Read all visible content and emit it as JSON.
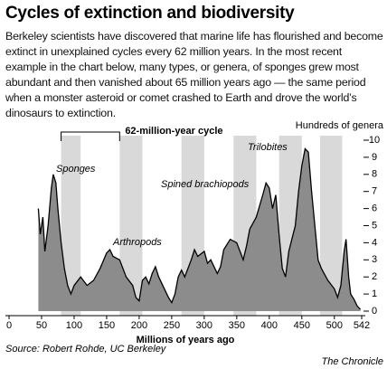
{
  "chart_data": {
    "type": "area",
    "title": "Cycles of extinction and biodiversity",
    "subtitle": "Berkeley scientists have discovered that marine life has flourished and become extinct in unexplained cycles every 62 million years. In the most recent example in the chart below, many types, or genera, of sponges grew most abundant and then vanished about 65 million years ago — the same period when a monster asteroid or comet crashed to Earth and drove the world’s dinosaurs to extinction.",
    "x_label": "Millions of years ago",
    "y_label": "Hundreds of genera",
    "cycle_label": "62-million-year cycle",
    "annotations": [
      "Sponges",
      "Arthropods",
      "Spined brachiopods",
      "Trilobites"
    ],
    "source": "Source: Robert Rohde, UC Berkeley",
    "credit": "The Chronicle",
    "color": "#8c8c8c",
    "band_color": "#d9d9d9",
    "cycle_bands": [
      [
        80,
        110
      ],
      [
        170,
        205
      ],
      [
        265,
        300
      ],
      [
        345,
        380
      ],
      [
        415,
        450
      ],
      [
        478,
        512
      ]
    ],
    "x": [
      45,
      48,
      52,
      55,
      60,
      65,
      68,
      72,
      75,
      80,
      85,
      90,
      95,
      100,
      110,
      120,
      130,
      140,
      150,
      155,
      160,
      170,
      180,
      190,
      195,
      200,
      205,
      210,
      215,
      220,
      225,
      230,
      240,
      245,
      250,
      255,
      260,
      265,
      270,
      280,
      285,
      290,
      300,
      305,
      310,
      320,
      325,
      330,
      340,
      350,
      360,
      365,
      370,
      380,
      390,
      395,
      400,
      405,
      410,
      415,
      420,
      425,
      430,
      440,
      445,
      450,
      455,
      460,
      465,
      470,
      475,
      480,
      490,
      500,
      505,
      510,
      515,
      518,
      522,
      525,
      530,
      535,
      540
    ],
    "values": [
      6,
      4.5,
      5.5,
      3.5,
      5,
      7.2,
      8,
      7.5,
      6,
      4,
      2.5,
      1.5,
      1,
      1.5,
      2,
      1.5,
      1.8,
      2.5,
      3.4,
      3.6,
      3.2,
      3,
      2,
      1.5,
      0.8,
      0.6,
      1.8,
      2,
      1.6,
      2.2,
      2.6,
      2,
      1.2,
      0.8,
      0.5,
      1,
      2,
      2.4,
      2,
      3,
      3.6,
      3.2,
      3.5,
      2.8,
      3,
      2.2,
      2.6,
      3.6,
      4.2,
      4,
      3,
      3.8,
      4.8,
      5.5,
      6.8,
      7.5,
      7.2,
      6,
      6.8,
      4.5,
      2.5,
      2,
      3.5,
      5,
      7,
      8.5,
      9.5,
      9.3,
      7,
      5,
      3,
      2.5,
      1.8,
      1.3,
      0.8,
      1.5,
      3.5,
      4.2,
      2,
      1,
      0.7,
      0.3,
      0.1
    ],
    "xlim": [
      0,
      542
    ],
    "ylim": [
      0,
      10
    ],
    "xticks": [
      0,
      50,
      100,
      150,
      200,
      250,
      300,
      350,
      400,
      450,
      500,
      542
    ],
    "yticks": [
      0,
      1,
      2,
      3,
      4,
      5,
      6,
      7,
      8,
      9,
      10
    ]
  }
}
